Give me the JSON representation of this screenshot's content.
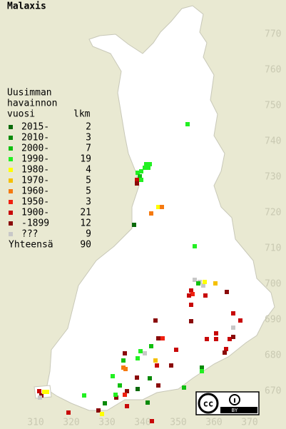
{
  "title": "Malaxis",
  "legend": {
    "heading": [
      "Uusimman",
      "havainnon",
      "vuosi"
    ],
    "count_heading": "lkm",
    "rows": [
      {
        "label": "2015-",
        "count": 2,
        "color": "#0a6a0a"
      },
      {
        "label": "2010-",
        "count": 3,
        "color": "#0a8a0a"
      },
      {
        "label": "2000-",
        "count": 7,
        "color": "#10c010"
      },
      {
        "label": "1990-",
        "count": 19,
        "color": "#22f022"
      },
      {
        "label": "1980-",
        "count": 4,
        "color": "#ffff00"
      },
      {
        "label": "1970-",
        "count": 5,
        "color": "#f5c000"
      },
      {
        "label": "1960-",
        "count": 5,
        "color": "#f57a10"
      },
      {
        "label": "1950-",
        "count": 3,
        "color": "#f02010"
      },
      {
        "label": "1900-",
        "count": 21,
        "color": "#c80808"
      },
      {
        "label": "-1899",
        "count": 12,
        "color": "#8a0a0a"
      },
      {
        "label": "???",
        "count": 9,
        "color": "#c8c8c8"
      }
    ],
    "total": {
      "label": "Yhteensä",
      "count": 90
    }
  },
  "xlim": [
    300,
    380
  ],
  "ylim": [
    660,
    780
  ],
  "xticks": [
    310,
    320,
    330,
    340,
    350,
    360,
    370
  ],
  "yticks": [
    670,
    680,
    690,
    700,
    710,
    720,
    730,
    740,
    750,
    760,
    770
  ],
  "squares": [
    {
      "x": 352.6,
      "y": 745.2,
      "legend": 3
    },
    {
      "x": 341,
      "y": 734,
      "legend": 3
    },
    {
      "x": 342,
      "y": 734,
      "legend": 3
    },
    {
      "x": 340.6,
      "y": 733,
      "legend": 3
    },
    {
      "x": 341.6,
      "y": 733,
      "legend": 3
    },
    {
      "x": 339.6,
      "y": 732,
      "legend": 3
    },
    {
      "x": 338.6,
      "y": 731.6,
      "legend": 3
    },
    {
      "x": 339.2,
      "y": 730.6,
      "legend": 2
    },
    {
      "x": 339.6,
      "y": 729.6,
      "legend": 3
    },
    {
      "x": 338.4,
      "y": 729.6,
      "legend": 8
    },
    {
      "x": 338.4,
      "y": 728.6,
      "legend": 9
    },
    {
      "x": 344.4,
      "y": 722,
      "legend": 4
    },
    {
      "x": 345.4,
      "y": 722,
      "legend": 6
    },
    {
      "x": 342.4,
      "y": 720.2,
      "legend": 6
    },
    {
      "x": 337.6,
      "y": 717,
      "legend": 0
    },
    {
      "x": 354.6,
      "y": 711,
      "legend": 3
    },
    {
      "x": 354.6,
      "y": 701.6,
      "legend": 10
    },
    {
      "x": 356,
      "y": 701,
      "legend": 10
    },
    {
      "x": 357,
      "y": 700,
      "legend": 10
    },
    {
      "x": 355.6,
      "y": 700.6,
      "legend": 2
    },
    {
      "x": 357.4,
      "y": 701,
      "legend": 4
    },
    {
      "x": 360.4,
      "y": 700.6,
      "legend": 5
    },
    {
      "x": 353.6,
      "y": 698.6,
      "legend": 8
    },
    {
      "x": 354,
      "y": 697.6,
      "legend": 7
    },
    {
      "x": 353,
      "y": 697.2,
      "legend": 8
    },
    {
      "x": 357.6,
      "y": 697.2,
      "legend": 8
    },
    {
      "x": 363.6,
      "y": 698.2,
      "legend": 9
    },
    {
      "x": 353.6,
      "y": 694.6,
      "legend": 8
    },
    {
      "x": 365.4,
      "y": 692.2,
      "legend": 8
    },
    {
      "x": 367.4,
      "y": 690.2,
      "legend": 8
    },
    {
      "x": 343.6,
      "y": 690.2,
      "legend": 9
    },
    {
      "x": 353.6,
      "y": 690,
      "legend": 9
    },
    {
      "x": 365.4,
      "y": 688.2,
      "legend": 10
    },
    {
      "x": 360.6,
      "y": 686.6,
      "legend": 8
    },
    {
      "x": 360.6,
      "y": 685,
      "legend": 8
    },
    {
      "x": 358,
      "y": 685,
      "legend": 8
    },
    {
      "x": 364.4,
      "y": 685,
      "legend": 8
    },
    {
      "x": 365.4,
      "y": 685.6,
      "legend": 9
    },
    {
      "x": 363.4,
      "y": 682.2,
      "legend": 8
    },
    {
      "x": 363,
      "y": 681.2,
      "legend": 9
    },
    {
      "x": 345.6,
      "y": 685.2,
      "legend": 7
    },
    {
      "x": 344.4,
      "y": 685.2,
      "legend": 9
    },
    {
      "x": 349.4,
      "y": 682,
      "legend": 8
    },
    {
      "x": 342.4,
      "y": 683,
      "legend": 2
    },
    {
      "x": 340.6,
      "y": 681,
      "legend": 10
    },
    {
      "x": 339.4,
      "y": 681.6,
      "legend": 3
    },
    {
      "x": 335,
      "y": 681,
      "legend": 9
    },
    {
      "x": 334.6,
      "y": 679,
      "legend": 2
    },
    {
      "x": 338.6,
      "y": 679.6,
      "legend": 3
    },
    {
      "x": 343.6,
      "y": 679,
      "legend": 5
    },
    {
      "x": 344,
      "y": 677.6,
      "legend": 8
    },
    {
      "x": 348,
      "y": 677.6,
      "legend": 9
    },
    {
      "x": 334.6,
      "y": 677,
      "legend": 6
    },
    {
      "x": 335.2,
      "y": 676.6,
      "legend": 6
    },
    {
      "x": 331.6,
      "y": 674.6,
      "legend": 3
    },
    {
      "x": 338.4,
      "y": 674.2,
      "legend": 9
    },
    {
      "x": 342,
      "y": 674,
      "legend": 1
    },
    {
      "x": 356.6,
      "y": 677,
      "legend": 1
    },
    {
      "x": 356.6,
      "y": 676,
      "legend": 3
    },
    {
      "x": 351.6,
      "y": 671.4,
      "legend": 2
    },
    {
      "x": 344.4,
      "y": 672,
      "legend": 9
    },
    {
      "x": 333.6,
      "y": 672,
      "legend": 2
    },
    {
      "x": 338.6,
      "y": 671,
      "legend": 0
    },
    {
      "x": 335.6,
      "y": 670.4,
      "legend": 9
    },
    {
      "x": 335,
      "y": 669.4,
      "legend": 7
    },
    {
      "x": 332.6,
      "y": 668.6,
      "legend": 9
    },
    {
      "x": 332.4,
      "y": 669.4,
      "legend": 3
    },
    {
      "x": 341.4,
      "y": 667.2,
      "legend": 1
    },
    {
      "x": 329.4,
      "y": 667,
      "legend": 1
    },
    {
      "x": 335.6,
      "y": 666.2,
      "legend": 8
    },
    {
      "x": 327.6,
      "y": 665,
      "legend": 9
    },
    {
      "x": 328.6,
      "y": 664,
      "legend": 4
    },
    {
      "x": 342.6,
      "y": 662,
      "legend": 8
    },
    {
      "x": 319.2,
      "y": 664.4,
      "legend": 8
    },
    {
      "x": 323.6,
      "y": 669.2,
      "legend": 3
    },
    {
      "x": 311,
      "y": 670.4,
      "legend": 8
    },
    {
      "x": 311.6,
      "y": 669.2,
      "legend": 9
    },
    {
      "x": 312.4,
      "y": 670.2,
      "legend": 4
    },
    {
      "x": 313.2,
      "y": 670.2,
      "legend": 4
    },
    {
      "x": 311.2,
      "y": 668.6,
      "legend": 10
    }
  ],
  "badge": {
    "cc": "cc",
    "by": "BY"
  }
}
